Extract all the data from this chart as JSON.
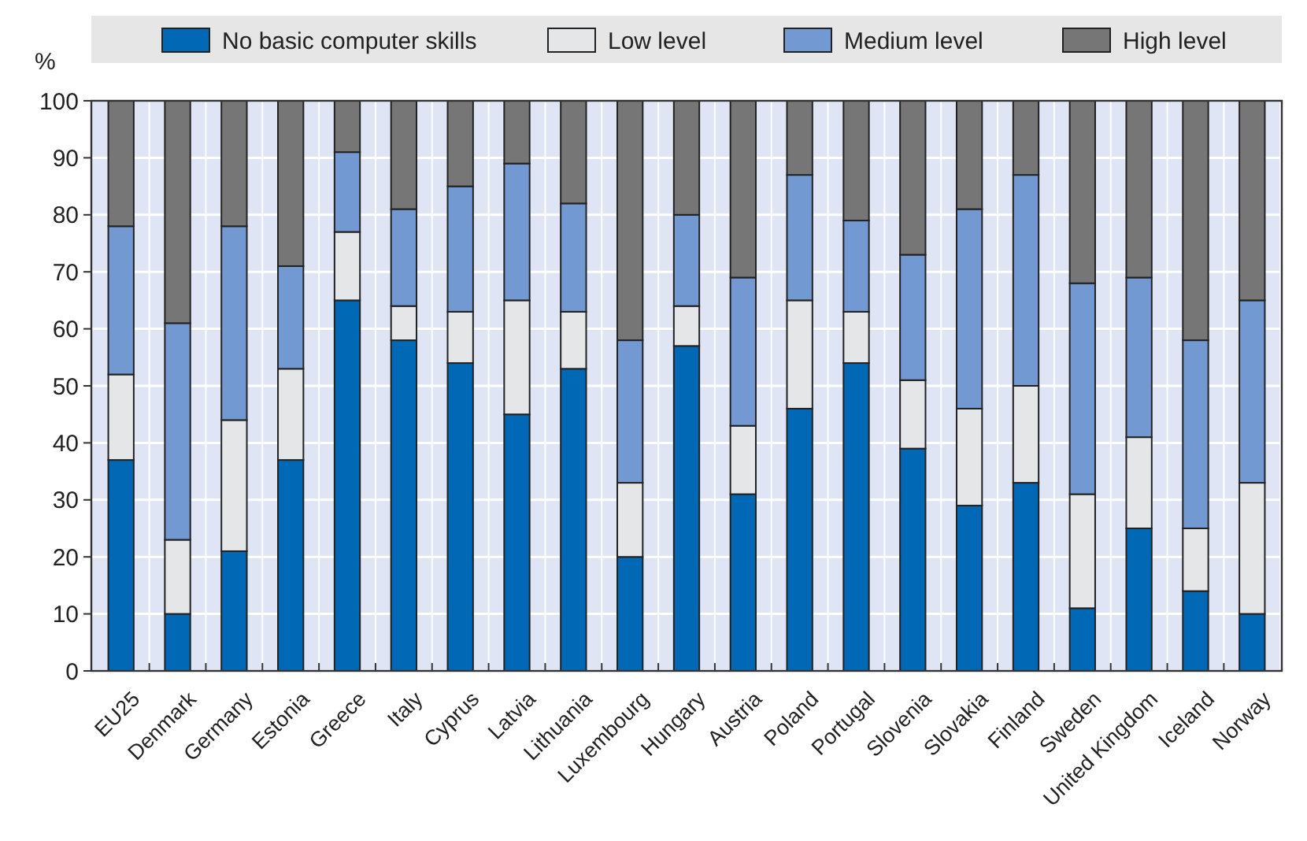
{
  "chart_data": {
    "type": "bar",
    "stacked": true,
    "ylabel": "%",
    "categories": [
      "EU25",
      "Denmark",
      "Germany",
      "Estonia",
      "Greece",
      "Italy",
      "Cyprus",
      "Latvia",
      "Lithuania",
      "Luxembourg",
      "Hungary",
      "Austria",
      "Poland",
      "Portugal",
      "Slovenia",
      "Slovakia",
      "Finland",
      "Sweden",
      "United Kingdom",
      "Iceland",
      "Norway"
    ],
    "series": [
      {
        "name": "No basic computer skills",
        "color": "#0068b4",
        "values": [
          37,
          10,
          21,
          37,
          65,
          58,
          54,
          45,
          53,
          20,
          57,
          31,
          46,
          54,
          39,
          29,
          33,
          11,
          25,
          14,
          10
        ]
      },
      {
        "name": "Low level",
        "color": "#e5e6e8",
        "values": [
          15,
          13,
          23,
          16,
          12,
          6,
          9,
          20,
          10,
          13,
          7,
          12,
          19,
          9,
          12,
          17,
          17,
          20,
          16,
          11,
          23
        ]
      },
      {
        "name": "Medium level",
        "color": "#7399d2",
        "values": [
          26,
          38,
          34,
          18,
          14,
          17,
          22,
          24,
          19,
          25,
          16,
          26,
          22,
          16,
          22,
          35,
          37,
          37,
          28,
          33,
          32
        ]
      },
      {
        "name": "High level",
        "color": "#767676",
        "values": [
          22,
          39,
          22,
          29,
          9,
          19,
          15,
          11,
          18,
          42,
          20,
          31,
          13,
          21,
          27,
          19,
          13,
          32,
          31,
          42,
          35
        ]
      }
    ],
    "ylim": [
      0,
      100
    ],
    "yticks": [
      0,
      10,
      20,
      30,
      40,
      50,
      60,
      70,
      80,
      90,
      100
    ],
    "grid": true,
    "legend": "top"
  }
}
